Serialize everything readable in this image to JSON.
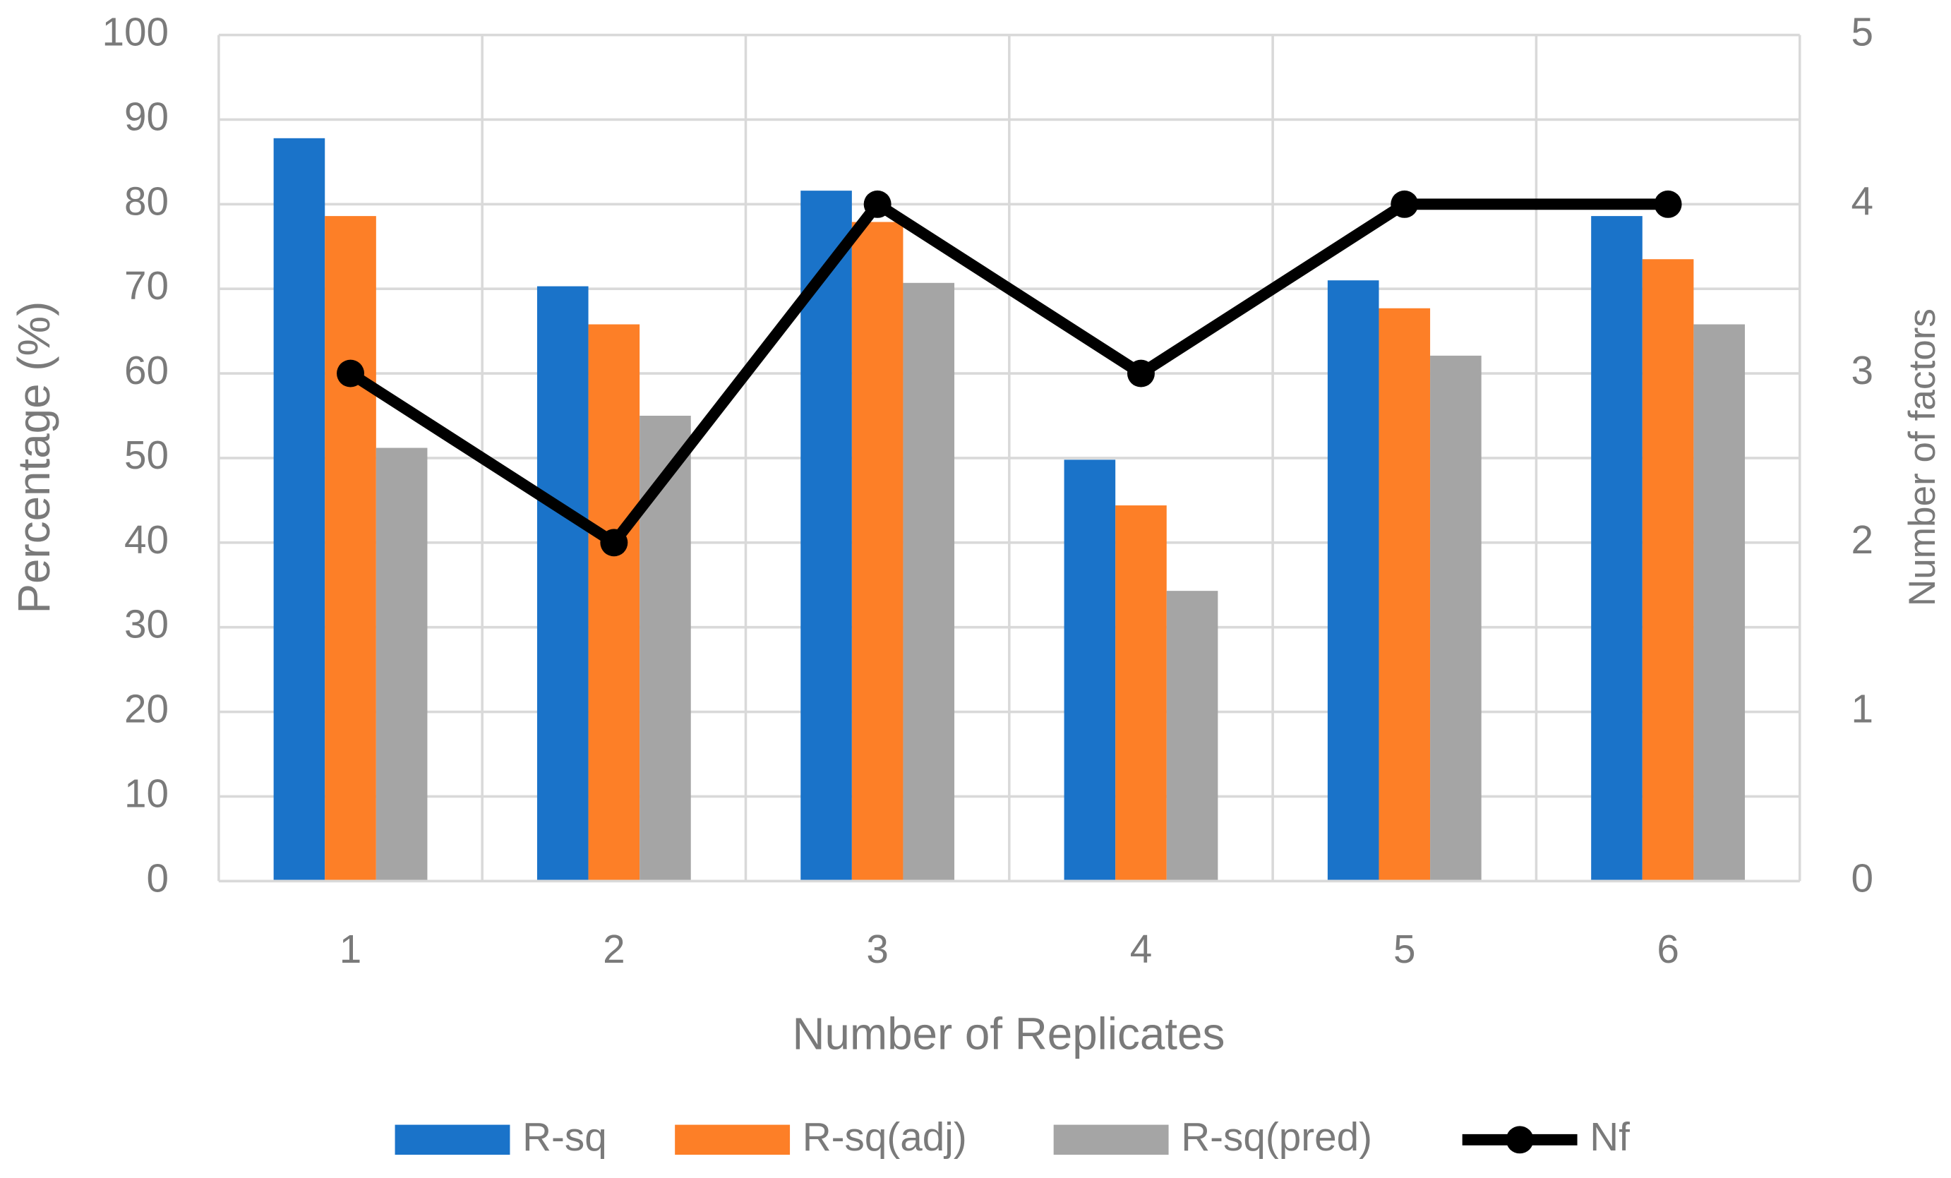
{
  "chart_data": {
    "type": "bar",
    "x_label": "Number of Replicates",
    "y_label": "Percentage (%)",
    "y2_label": "Number of factors",
    "categories": [
      "1",
      "2",
      "3",
      "4",
      "5",
      "6"
    ],
    "series": [
      {
        "name": "R-sq",
        "color": "#1a73c9",
        "values": [
          87.8,
          70.3,
          81.6,
          49.8,
          71.0,
          78.6
        ]
      },
      {
        "name": "R-sq(adj)",
        "color": "#fd7f27",
        "values": [
          78.6,
          65.8,
          77.9,
          44.4,
          67.7,
          73.5
        ]
      },
      {
        "name": "R-sq(pred)",
        "color": "#a5a5a5",
        "values": [
          51.2,
          55.0,
          70.7,
          34.3,
          62.1,
          65.8
        ]
      },
      {
        "name": "Nf",
        "color": "#000000",
        "type": "line",
        "axis": "y2",
        "values": [
          3,
          2,
          4,
          3,
          4,
          4
        ]
      }
    ],
    "ylim": [
      0,
      100
    ],
    "yticks": [
      0,
      10,
      20,
      30,
      40,
      50,
      60,
      70,
      80,
      90,
      100
    ],
    "y2lim": [
      0,
      5
    ],
    "y2ticks": [
      0,
      1,
      2,
      3,
      4,
      5
    ],
    "grid": true,
    "legend": "bottom"
  }
}
